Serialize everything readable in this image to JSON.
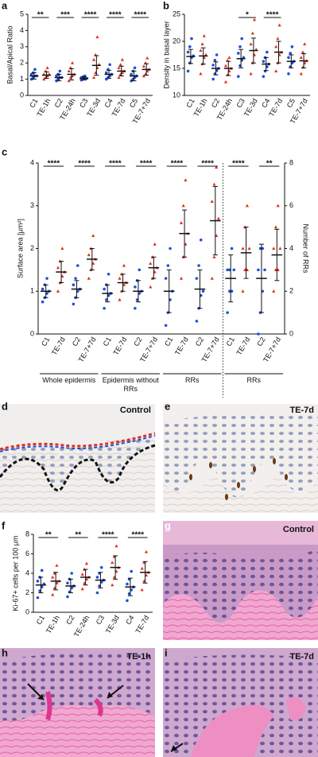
{
  "chart_data": [
    {
      "type": "dot",
      "label": "a",
      "ylabel": "Basal/Apical Ratio",
      "ylim": [
        0,
        5
      ],
      "yticks": [
        0,
        1,
        2,
        3,
        4,
        5
      ],
      "colors": [
        "#1f4fd8",
        "#e0301e"
      ],
      "groups": [
        {
          "categories": [
            "C1",
            "TE-1h",
            "C2",
            "TE-24h",
            "C3",
            "TE-3d",
            "C4",
            "TE-7d",
            "C5",
            "TE-7+7d"
          ],
          "means": [
            1.2,
            1.25,
            1.1,
            1.3,
            1.05,
            1.85,
            1.3,
            1.5,
            1.2,
            1.6
          ],
          "sds": [
            0.2,
            0.2,
            0.2,
            0.35,
            0.1,
            0.6,
            0.25,
            0.3,
            0.3,
            0.35
          ],
          "points": [
            [
              1.0,
              1.1,
              1.2,
              1.2,
              1.3,
              1.4,
              1.6
            ],
            [
              1.0,
              1.1,
              1.2,
              1.3,
              1.3,
              1.5,
              1.7
            ],
            [
              0.9,
              1.0,
              1.1,
              1.1,
              1.2,
              1.3,
              1.5
            ],
            [
              0.9,
              1.1,
              1.2,
              1.3,
              1.5,
              1.7,
              2.0
            ],
            [
              0.95,
              1.0,
              1.05,
              1.05,
              1.1,
              1.15,
              1.2
            ],
            [
              1.1,
              1.4,
              1.7,
              1.9,
              2.2,
              2.5,
              3.6
            ],
            [
              1.0,
              1.1,
              1.2,
              1.3,
              1.4,
              1.6,
              1.9
            ],
            [
              1.1,
              1.3,
              1.4,
              1.5,
              1.7,
              1.9,
              2.2
            ],
            [
              0.9,
              1.0,
              1.1,
              1.2,
              1.3,
              1.5,
              1.7
            ],
            [
              1.2,
              1.3,
              1.5,
              1.6,
              1.8,
              2.0,
              2.3
            ]
          ],
          "significance": [
            "**",
            "***",
            "****",
            "****",
            "****"
          ]
        }
      ]
    },
    {
      "type": "dot",
      "label": "b",
      "ylabel": "Density in basal layer",
      "ylim": [
        10,
        25
      ],
      "yticks": [
        10,
        15,
        20,
        25
      ],
      "colors": [
        "#1f4fd8",
        "#e0301e"
      ],
      "groups": [
        {
          "categories": [
            "C1",
            "TE-1h",
            "C2",
            "TE-24h",
            "C3",
            "TE-3d",
            "C4",
            "TE-7d",
            "C5",
            "TE-7+7d"
          ],
          "means": [
            17.2,
            17.3,
            15,
            15,
            16.8,
            18.3,
            15.8,
            18,
            16.3,
            16.4
          ],
          "sds": [
            1.3,
            1.5,
            1.2,
            1.3,
            1.7,
            2.3,
            1.2,
            2,
            1.2,
            1.3
          ],
          "points": [
            [
              14.5,
              16,
              17,
              17.3,
              18,
              19,
              20.5
            ],
            [
              14,
              15.8,
              17,
              17.5,
              18.3,
              19.5,
              21
            ],
            [
              13,
              14,
              14.6,
              15,
              15.6,
              16.5,
              17.5
            ],
            [
              12.5,
              13.8,
              14.5,
              15,
              15.5,
              16.5,
              17
            ],
            [
              13.5,
              15.5,
              16.5,
              17,
              17.8,
              19,
              20.5
            ],
            [
              14,
              16,
              17.5,
              18.5,
              19.5,
              21.5,
              24
            ],
            [
              13.5,
              14.5,
              15.3,
              15.8,
              16.3,
              17,
              18
            ],
            [
              14.5,
              16,
              17.5,
              18,
              19,
              20.5,
              23
            ],
            [
              14,
              15.3,
              16,
              16.3,
              17,
              17.8,
              19
            ],
            [
              14,
              15.2,
              16,
              16.4,
              17,
              18,
              19.5
            ]
          ],
          "significance": [
            null,
            null,
            "*",
            "****",
            null
          ]
        }
      ]
    },
    {
      "type": "dot",
      "label": "c",
      "ylabel": "Surface area [μm²]",
      "ylim": [
        0,
        4
      ],
      "yticks": [
        0,
        1,
        2,
        3,
        4
      ],
      "y2label": "Number of RRs",
      "y2lim": [
        0,
        8
      ],
      "y2ticks": [
        0,
        2,
        4,
        6,
        8
      ],
      "colors": [
        "#1f4fd8",
        "#e0301e"
      ],
      "groups": [
        {
          "name": "Whole epidermis",
          "categories": [
            "C1",
            "TE-7d",
            "C2",
            "TE-7+7d"
          ],
          "means": [
            1.0,
            1.45,
            1.05,
            1.75
          ],
          "sds": [
            0.15,
            0.25,
            0.2,
            0.25
          ],
          "points": [
            [
              0.75,
              0.85,
              0.95,
              1.0,
              1.05,
              1.15,
              1.3
            ],
            [
              1.0,
              1.2,
              1.35,
              1.45,
              1.55,
              1.7,
              2.0
            ],
            [
              0.7,
              0.85,
              1.0,
              1.05,
              1.15,
              1.3,
              1.6
            ],
            [
              1.3,
              1.5,
              1.65,
              1.75,
              1.85,
              2.0,
              2.3
            ]
          ],
          "significance": [
            "****",
            "****"
          ]
        },
        {
          "name": "Epidermis without RRs",
          "categories": [
            "C1",
            "TE-7d",
            "C2",
            "TE-7+7d"
          ],
          "means": [
            0.95,
            1.2,
            1.0,
            1.55
          ],
          "sds": [
            0.2,
            0.2,
            0.25,
            0.25
          ],
          "points": [
            [
              0.6,
              0.8,
              0.9,
              0.95,
              1.05,
              1.15,
              1.4
            ],
            [
              0.8,
              1.0,
              1.15,
              1.2,
              1.3,
              1.4,
              1.6
            ],
            [
              0.6,
              0.8,
              0.95,
              1.0,
              1.1,
              1.25,
              1.5
            ],
            [
              1.1,
              1.3,
              1.45,
              1.55,
              1.65,
              1.8,
              2.1
            ]
          ],
          "significance": [
            "****",
            "****"
          ]
        },
        {
          "name": "RRs",
          "categories": [
            "C1",
            "TE-7d",
            "C2",
            "TE-7+7d"
          ],
          "means": [
            1.0,
            2.35,
            1.05,
            2.65
          ],
          "sds": [
            0.5,
            0.55,
            0.45,
            0.8
          ],
          "points": [
            [
              0.2,
              0.5,
              0.8,
              1.0,
              1.3,
              1.6,
              2.0
            ],
            [
              1.3,
              1.8,
              2.1,
              2.35,
              2.6,
              3.0,
              3.6
            ],
            [
              0.3,
              0.6,
              0.9,
              1.0,
              1.3,
              1.6,
              2.2
            ],
            [
              1.3,
              1.8,
              2.3,
              2.7,
              3.1,
              3.5,
              3.9
            ]
          ],
          "significance": [
            "****",
            "****"
          ]
        },
        {
          "name": "RRs",
          "axis": "y2",
          "categories": [
            "C1",
            "TE-7d",
            "C2",
            "TE-7+7d"
          ],
          "means": [
            2.6,
            3.8,
            2.6,
            3.7
          ],
          "sds": [
            1.1,
            1.2,
            1.6,
            1.2
          ],
          "points": [
            [
              1,
              2,
              2,
              3,
              3,
              3,
              4
            ],
            [
              2,
              3,
              3,
              4,
              4,
              5,
              6
            ],
            [
              0,
              1,
              2,
              3,
              3,
              4,
              4
            ],
            [
              2,
              3,
              3,
              4,
              4,
              5,
              6
            ]
          ],
          "significance": [
            "****",
            "**"
          ]
        }
      ]
    },
    {
      "type": "dot",
      "label": "f",
      "ylabel": "Ki-67+ cells per 100 μm",
      "ylim": [
        0,
        8
      ],
      "yticks": [
        0,
        2,
        4,
        6,
        8
      ],
      "colors": [
        "#1f4fd8",
        "#e0301e"
      ],
      "groups": [
        {
          "categories": [
            "C1",
            "TE-1h",
            "C2",
            "TE-24h",
            "C3",
            "TE-3d",
            "C4",
            "TE-7d"
          ],
          "means": [
            2.8,
            3.2,
            2.7,
            3.6,
            3.3,
            4.6,
            2.6,
            4.1
          ],
          "sds": [
            0.8,
            0.9,
            0.7,
            0.8,
            0.8,
            1.2,
            0.9,
            1.1
          ],
          "points": [
            [
              1.5,
              2.2,
              2.6,
              2.9,
              3.2,
              3.6,
              4.3
            ],
            [
              1.8,
              2.5,
              3.0,
              3.2,
              3.6,
              4.0,
              4.8
            ],
            [
              1.6,
              2.1,
              2.5,
              2.7,
              3.0,
              3.4,
              4.0
            ],
            [
              2.4,
              3.0,
              3.4,
              3.6,
              3.9,
              4.4,
              5.0
            ],
            [
              2.0,
              2.7,
              3.1,
              3.3,
              3.6,
              4.0,
              4.6
            ],
            [
              2.8,
              3.6,
              4.2,
              4.6,
              5.1,
              5.7,
              6.8
            ],
            [
              1.2,
              1.9,
              2.3,
              2.6,
              2.9,
              3.4,
              4.2
            ],
            [
              2.3,
              3.2,
              3.8,
              4.1,
              4.5,
              5.1,
              6.2
            ]
          ],
          "significance": [
            "**",
            "**",
            "****",
            "****"
          ]
        }
      ]
    }
  ],
  "images": [
    {
      "label": "d",
      "caption": "Control"
    },
    {
      "label": "e",
      "caption": "TE-7d"
    },
    {
      "label": "g",
      "caption": "Control"
    },
    {
      "label": "h",
      "caption": "TE-1h"
    },
    {
      "label": "i",
      "caption": "TE-7d"
    }
  ]
}
